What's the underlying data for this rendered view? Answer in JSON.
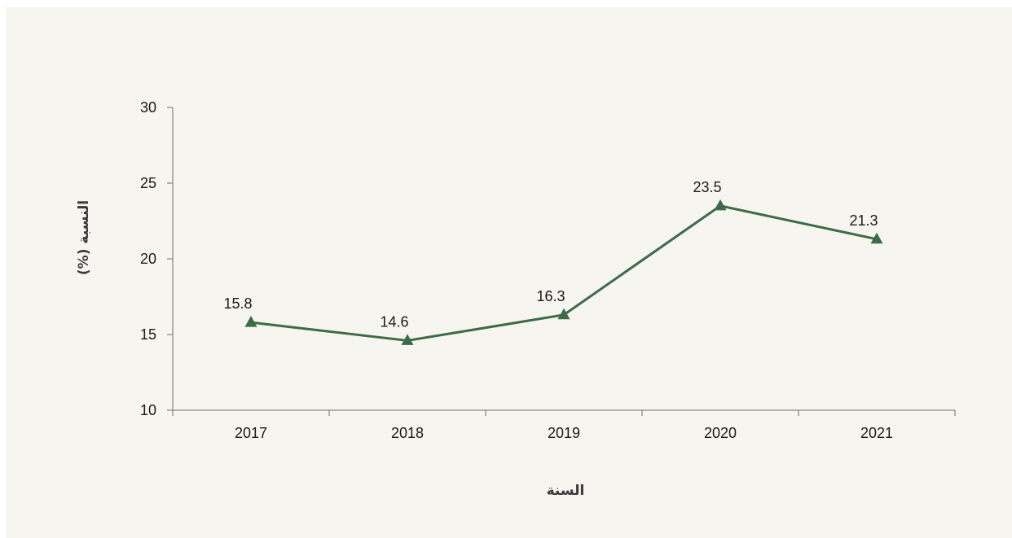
{
  "chart_data": {
    "type": "line",
    "title": "",
    "xlabel": "السنة",
    "ylabel": "النسبة (%)",
    "categories": [
      "2017",
      "2018",
      "2019",
      "2020",
      "2021"
    ],
    "series": [
      {
        "values": [
          15.8,
          14.6,
          16.3,
          23.5,
          21.3
        ],
        "data_labels": [
          "15.8",
          "14.6",
          "16.3",
          "23.5",
          "21.3"
        ],
        "marker": "triangle",
        "color": "#3d6b47"
      }
    ],
    "ylim": [
      10,
      30
    ],
    "yticks": [
      10,
      15,
      20,
      25,
      30
    ],
    "ytick_labels": [
      "10",
      "15",
      "20",
      "25",
      "30"
    ],
    "grid": false,
    "legend": "none",
    "colors": {
      "background": "#f6f5f0",
      "axis": "#8a8a8a",
      "line": "#3d6b47"
    }
  }
}
